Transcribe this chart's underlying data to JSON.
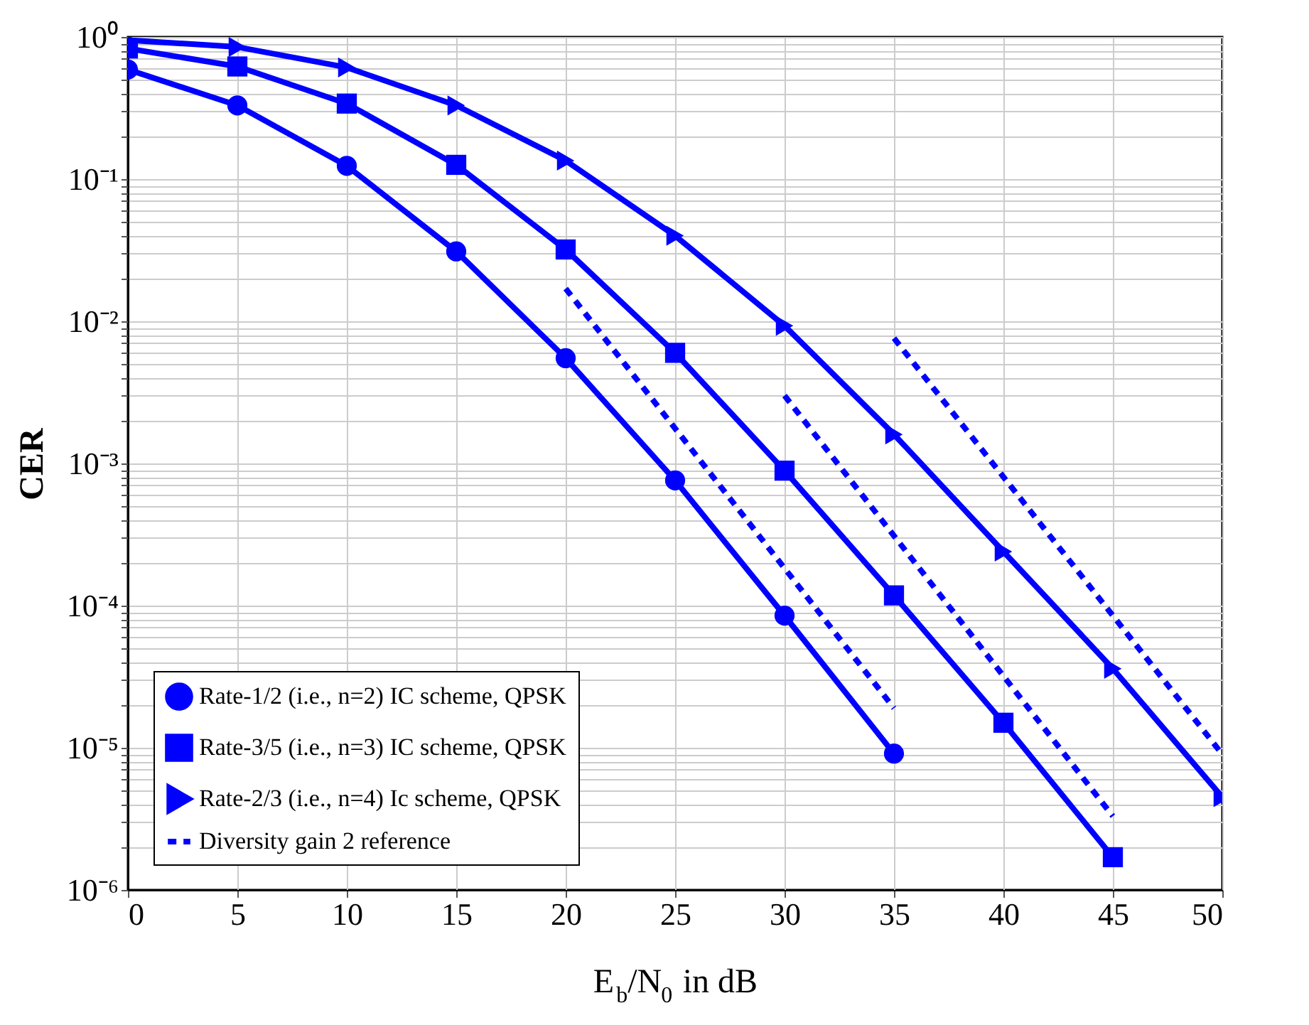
{
  "chart_data": {
    "type": "line",
    "xlabel": "E$_{b}$/N$_{0}$ in dB",
    "ylabel": "CER",
    "log": "y",
    "grid": true,
    "legend": "bottom left",
    "xlim": [
      0,
      50
    ],
    "xticks": [
      0,
      5,
      10,
      15,
      20,
      25,
      30,
      35,
      40,
      45,
      50
    ],
    "ylim": [
      1e-06,
      1
    ],
    "yticks": [
      {
        "value": 1e-06,
        "label": "10⁻⁶"
      },
      {
        "value": 2e-06,
        "label": null
      },
      {
        "value": 3e-06,
        "label": null
      },
      {
        "value": 4e-06,
        "label": null
      },
      {
        "value": 5e-06,
        "label": null
      },
      {
        "value": 6e-06,
        "label": null
      },
      {
        "value": 7e-06,
        "label": null
      },
      {
        "value": 8e-06,
        "label": null
      },
      {
        "value": 9e-06,
        "label": null
      },
      {
        "value": 1e-05,
        "label": "10⁻⁵"
      },
      {
        "value": 2e-05,
        "label": null
      },
      {
        "value": 3e-05,
        "label": null
      },
      {
        "value": 4e-05,
        "label": null
      },
      {
        "value": 5e-05,
        "label": null
      },
      {
        "value": 6e-05,
        "label": null
      },
      {
        "value": 7e-05,
        "label": null
      },
      {
        "value": 8e-05,
        "label": null
      },
      {
        "value": 9e-05,
        "label": null
      },
      {
        "value": 0.0001,
        "label": "10⁻⁴"
      },
      {
        "value": 0.0002,
        "label": null
      },
      {
        "value": 0.0003,
        "label": null
      },
      {
        "value": 0.0004,
        "label": null
      },
      {
        "value": 0.0005,
        "label": null
      },
      {
        "value": 0.0006,
        "label": null
      },
      {
        "value": 0.0007,
        "label": null
      },
      {
        "value": 0.0008,
        "label": null
      },
      {
        "value": 0.0009,
        "label": null
      },
      {
        "value": 0.001,
        "label": "10⁻³"
      },
      {
        "value": 0.002,
        "label": null
      },
      {
        "value": 0.003,
        "label": null
      },
      {
        "value": 0.004,
        "label": null
      },
      {
        "value": 0.005,
        "label": null
      },
      {
        "value": 0.006,
        "label": null
      },
      {
        "value": 0.007,
        "label": null
      },
      {
        "value": 0.008,
        "label": null
      },
      {
        "value": 0.009,
        "label": null
      },
      {
        "value": 0.01,
        "label": "10⁻²"
      },
      {
        "value": 0.02,
        "label": null
      },
      {
        "value": 0.03,
        "label": null
      },
      {
        "value": 0.04,
        "label": null
      },
      {
        "value": 0.05,
        "label": null
      },
      {
        "value": 0.06,
        "label": null
      },
      {
        "value": 0.07,
        "label": null
      },
      {
        "value": 0.08,
        "label": null
      },
      {
        "value": 0.09,
        "label": null
      },
      {
        "value": 0.1,
        "label": "10⁻¹"
      },
      {
        "value": 0.2,
        "label": null
      },
      {
        "value": 0.3,
        "label": null
      },
      {
        "value": 0.4,
        "label": null
      },
      {
        "value": 0.5,
        "label": null
      },
      {
        "value": 0.6,
        "label": null
      },
      {
        "value": 0.7,
        "label": null
      },
      {
        "value": 0.8,
        "label": null
      },
      {
        "value": 0.9,
        "label": null
      },
      {
        "value": 1,
        "label": "10⁰"
      }
    ],
    "series": [
      {
        "name": "Rate-1/2 (i.e., n=2) IC scheme, QPSK",
        "color": "#0000ff",
        "marker": "circle",
        "line_style": "solid",
        "x": [
          0,
          5,
          10,
          15,
          20,
          25,
          30,
          35
        ],
        "values": [
          0.59,
          0.33,
          0.124,
          0.031,
          0.0055,
          0.00076,
          8.5e-05,
          9.1e-06
        ]
      },
      {
        "name": "Rate-3/5 (i.e., n=3) IC scheme, QPSK",
        "color": "#0000ff",
        "marker": "square",
        "line_style": "solid",
        "x": [
          0,
          5,
          10,
          15,
          20,
          25,
          30,
          35,
          40,
          45
        ],
        "values": [
          0.83,
          0.62,
          0.34,
          0.126,
          0.032,
          0.006,
          0.00089,
          0.000118,
          1.5e-05,
          1.7e-06
        ]
      },
      {
        "name": "Rate-2/3 (i.e., n=4) Ic scheme, QPSK",
        "color": "#0000ff",
        "marker": "triangle",
        "line_style": "solid",
        "x": [
          0,
          5,
          10,
          15,
          20,
          25,
          30,
          35,
          40,
          45,
          50
        ],
        "values": [
          0.95,
          0.85,
          0.61,
          0.33,
          0.135,
          0.04,
          0.0093,
          0.0016,
          0.00024,
          3.6e-05,
          4.5e-06
        ]
      },
      {
        "name": "Diversity gain 2 reference",
        "color": "#0000ff",
        "marker": "none",
        "line_style": "dashed",
        "x": [
          20,
          35
        ],
        "values": [
          0.017,
          1.9e-05
        ]
      },
      {
        "color": "#0000ff",
        "marker": "none",
        "line_style": "dashed",
        "x": [
          30,
          45
        ],
        "values": [
          0.003,
          3.3e-06
        ]
      },
      {
        "color": "#0000ff",
        "marker": "none",
        "line_style": "dashed",
        "x": [
          35,
          50
        ],
        "values": [
          0.0076,
          9e-06
        ]
      }
    ]
  }
}
